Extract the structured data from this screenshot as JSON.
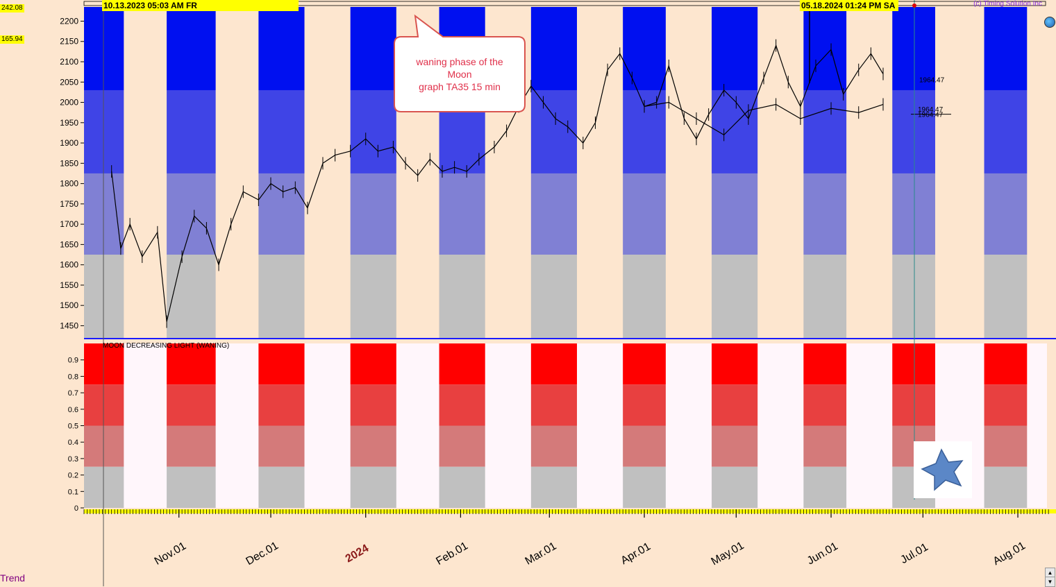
{
  "app": {
    "copyright": "(c) Timing Solution Inc",
    "trend_label": "Trend"
  },
  "header": {
    "start_date": "10.13.2023  05:03 AM FR",
    "cursor_date": "05.18.2024  01:24 PM SA"
  },
  "side_values": {
    "top": "242.08",
    "second": "165.94"
  },
  "callout": {
    "text": "waning phase of the\nMoon\ngraph TA35 15 min"
  },
  "colors": {
    "background": "#fde6cf",
    "blue_top": "#0010f0",
    "blue_mid": "#3f44e6",
    "blue_low": "#8080d4",
    "gray": "#c0c0c0",
    "red_top": "#ff0000",
    "red_mid": "#e84040",
    "red_low": "#d47a7a",
    "lower_bg": "#fff6fb"
  },
  "chart_data": [
    {
      "type": "line",
      "title": "",
      "ylim": [
        1420,
        2235
      ],
      "yticks": [
        1450,
        1500,
        1550,
        1600,
        1650,
        1700,
        1750,
        1800,
        1850,
        1900,
        1950,
        2000,
        2050,
        2100,
        2150,
        2200
      ],
      "bands": [
        {
          "from": 1825,
          "to": 2030,
          "color": "blue_mid"
        },
        {
          "from": 2030,
          "to": 2235,
          "color": "blue_top"
        },
        {
          "from": 1625,
          "to": 1825,
          "color": "blue_low"
        },
        {
          "from": 1420,
          "to": 1625,
          "color": "gray"
        }
      ],
      "price_labels": [
        "1964.47",
        "1964.47",
        "1964.47"
      ],
      "x_months": [
        "Nov.01",
        "Dec.01",
        "2024",
        "Feb.01",
        "Mar.01",
        "Apr.01",
        "May.01",
        "Jun.01",
        "Jul.01",
        "Aug.01"
      ],
      "series": [
        {
          "x": [
            "2023-10-10",
            "2023-10-13",
            "2023-10-16",
            "2023-10-20",
            "2023-10-25",
            "2023-10-28",
            "2023-11-02",
            "2023-11-06",
            "2023-11-10",
            "2023-11-14",
            "2023-11-18",
            "2023-11-22",
            "2023-11-27",
            "2023-12-01",
            "2023-12-05",
            "2023-12-09",
            "2023-12-13",
            "2023-12-18",
            "2023-12-22",
            "2023-12-27",
            "2024-01-01",
            "2024-01-05",
            "2024-01-10",
            "2024-01-14",
            "2024-01-18",
            "2024-01-22",
            "2024-01-26",
            "2024-01-30",
            "2024-02-03",
            "2024-02-07",
            "2024-02-12",
            "2024-02-16",
            "2024-02-20",
            "2024-02-24",
            "2024-02-28",
            "2024-03-03",
            "2024-03-07",
            "2024-03-12",
            "2024-03-16",
            "2024-03-20",
            "2024-03-24",
            "2024-03-28",
            "2024-04-01",
            "2024-04-05",
            "2024-04-09",
            "2024-04-14",
            "2024-04-18",
            "2024-04-22",
            "2024-04-27",
            "2024-05-01",
            "2024-05-05",
            "2024-05-10",
            "2024-05-14",
            "2024-05-18",
            "2024-05-22",
            "2024-05-27",
            "2024-06-01",
            "2024-06-05",
            "2024-06-10",
            "2024-06-14",
            "2024-06-18"
          ],
          "values": [
            1830,
            1640,
            1700,
            1620,
            1680,
            1460,
            1620,
            1720,
            1690,
            1600,
            1700,
            1780,
            1760,
            1800,
            1780,
            1790,
            1740,
            1850,
            1870,
            1880,
            1910,
            1880,
            1890,
            1850,
            1820,
            1860,
            1830,
            1840,
            1830,
            1860,
            1890,
            1930,
            1990,
            2040,
            2000,
            1960,
            1940,
            1900,
            1950,
            2080,
            2120,
            2060,
            1990,
            2000,
            2090,
            1960,
            1910,
            1970,
            2030,
            2000,
            1960,
            2060,
            2140,
            2050,
            1990,
            2090,
            2130,
            2020,
            2080,
            2120,
            2070
          ]
        },
        {
          "x": [
            "2024-04-01",
            "2024-04-09",
            "2024-04-18",
            "2024-04-27",
            "2024-05-05",
            "2024-05-14",
            "2024-05-22",
            "2024-06-01",
            "2024-06-10",
            "2024-06-18"
          ],
          "values": [
            1990,
            2000,
            1960,
            1920,
            1980,
            1995,
            1960,
            1985,
            1975,
            1995
          ]
        }
      ]
    },
    {
      "type": "bar",
      "title": "MOON DECREASING LIGHT (WANING)",
      "ylim": [
        0,
        1
      ],
      "yticks": [
        0,
        0.1,
        0.2,
        0.3,
        0.4,
        0.5,
        0.6,
        0.7,
        0.8,
        0.9
      ],
      "bands": [
        {
          "from": 0.75,
          "to": 1.0,
          "color": "red_top"
        },
        {
          "from": 0.5,
          "to": 0.75,
          "color": "red_mid"
        },
        {
          "from": 0.25,
          "to": 0.5,
          "color": "red_low"
        },
        {
          "from": 0,
          "to": 0.25,
          "color": "gray"
        }
      ],
      "waning_periods": [
        [
          "2023-10-01",
          "2023-10-14"
        ],
        [
          "2023-10-28",
          "2023-11-13"
        ],
        [
          "2023-11-27",
          "2023-12-12"
        ],
        [
          "2023-12-27",
          "2024-01-11"
        ],
        [
          "2024-01-25",
          "2024-02-09"
        ],
        [
          "2024-02-24",
          "2024-03-10"
        ],
        [
          "2024-03-25",
          "2024-04-08"
        ],
        [
          "2024-04-23",
          "2024-05-08"
        ],
        [
          "2024-05-23",
          "2024-06-06"
        ],
        [
          "2024-06-21",
          "2024-07-05"
        ],
        [
          "2024-07-21",
          "2024-08-04"
        ]
      ]
    }
  ]
}
